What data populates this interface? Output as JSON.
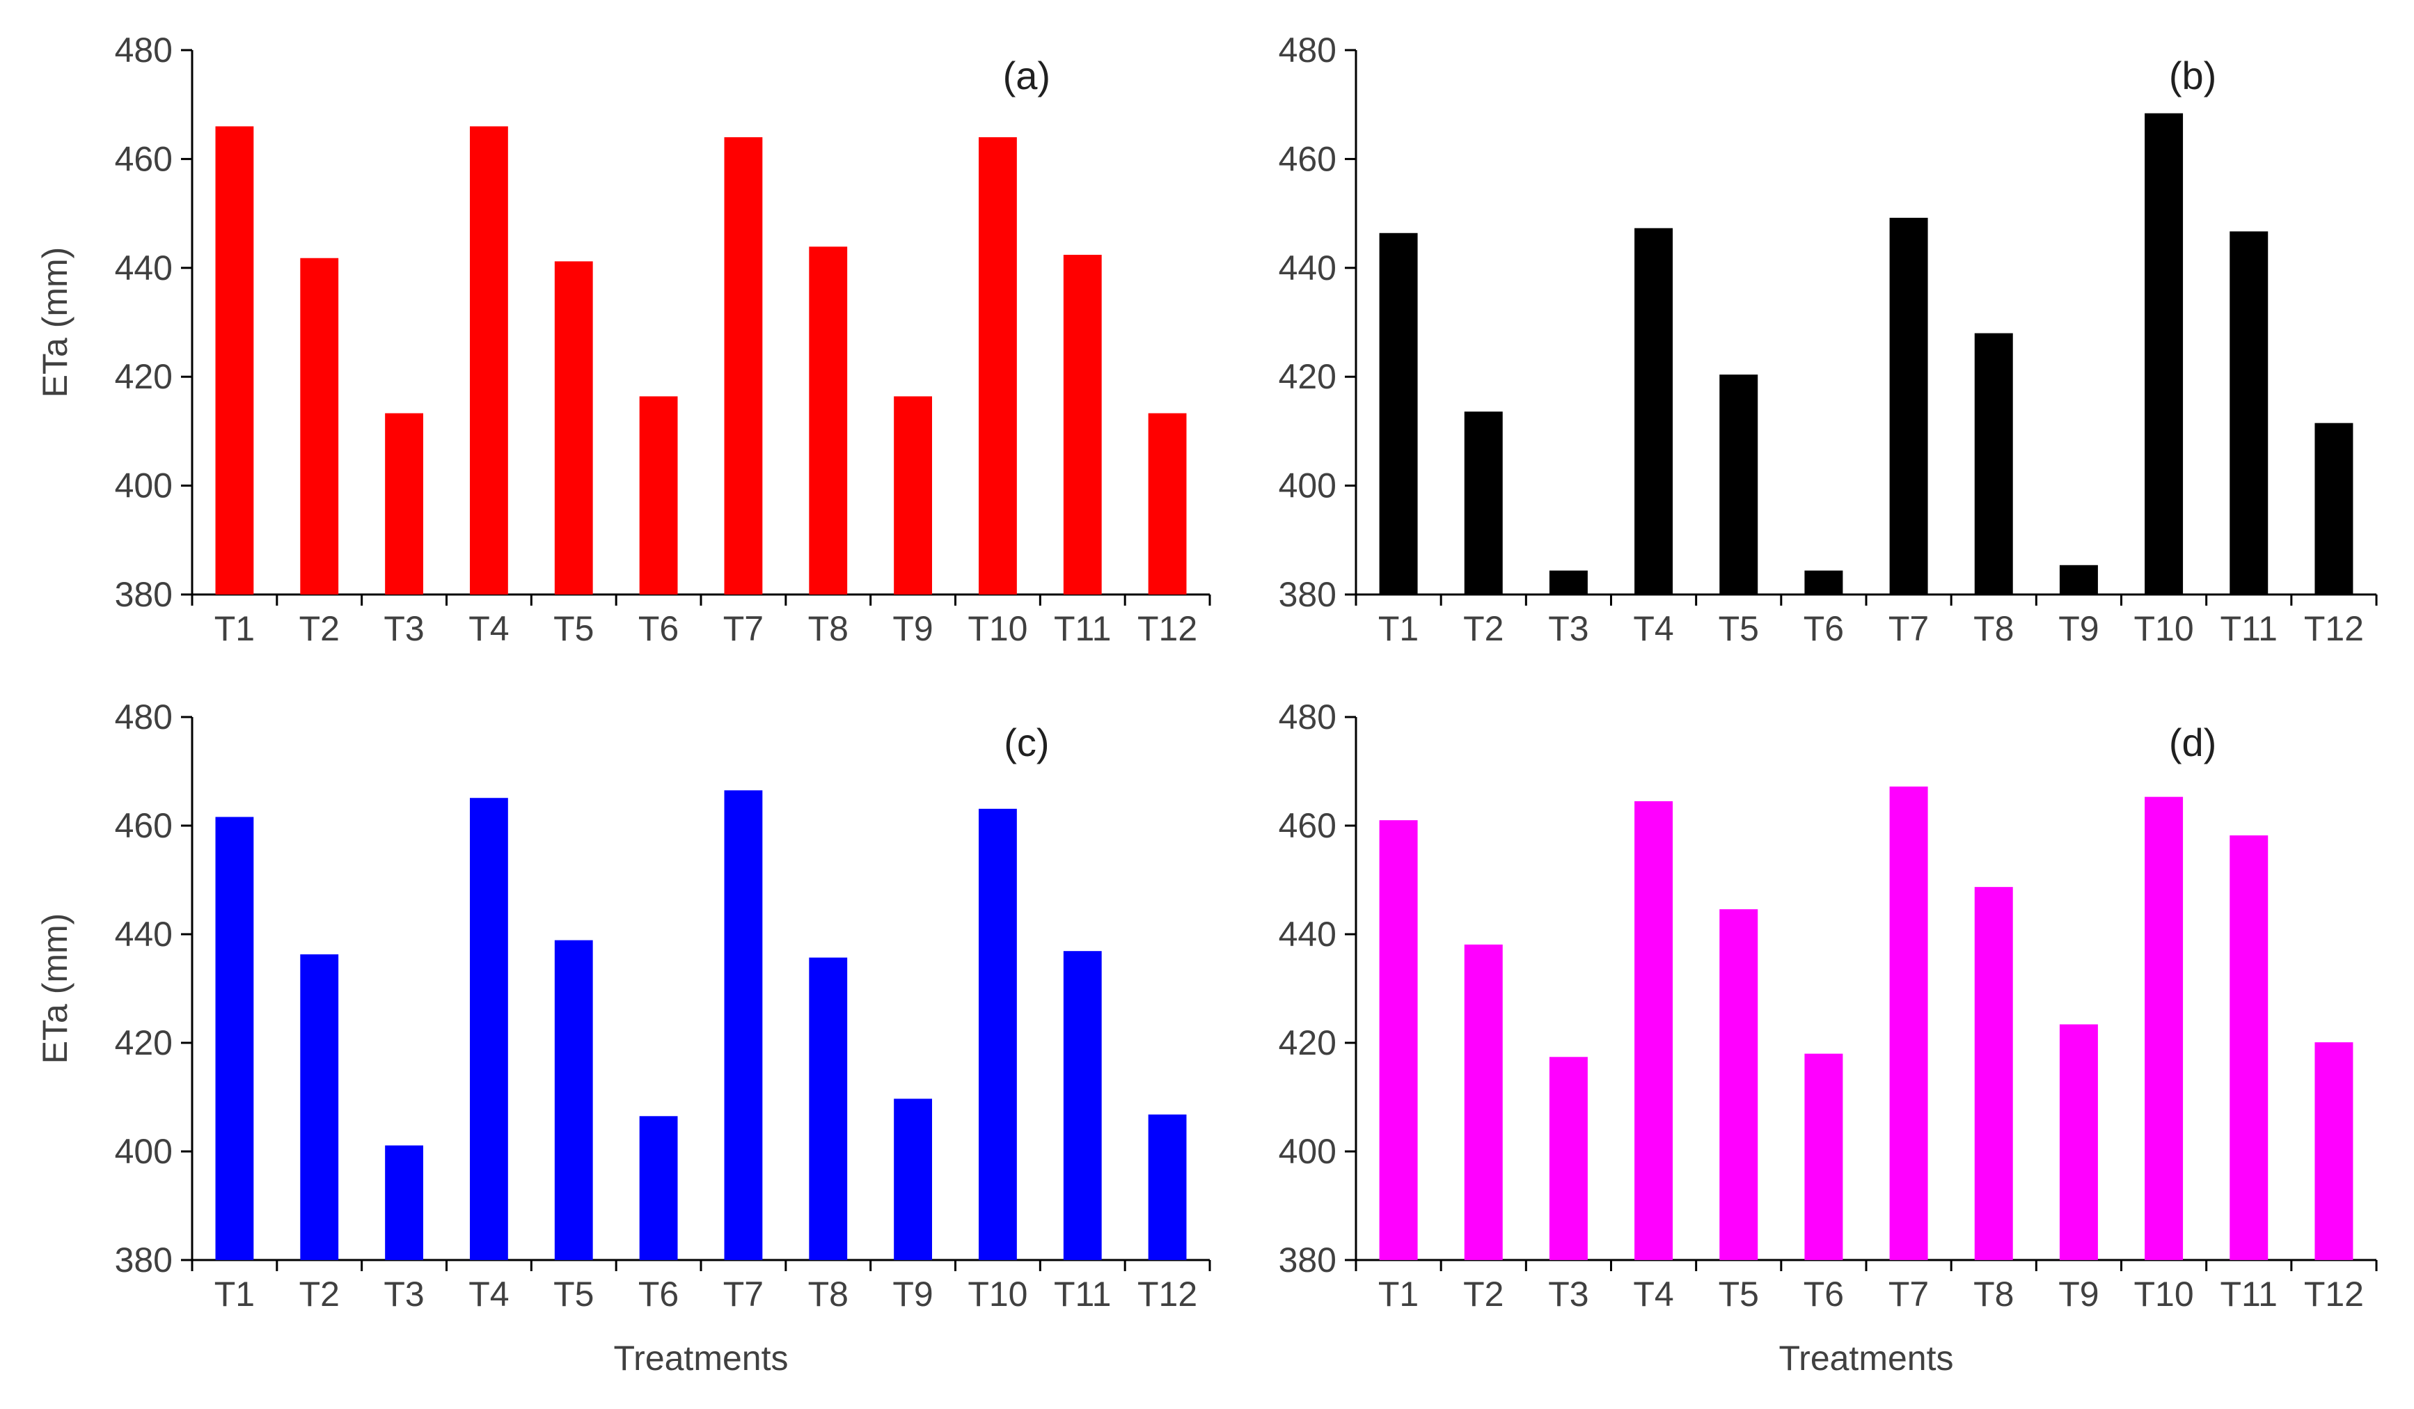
{
  "chart_data": [
    {
      "type": "bar",
      "panel_label": "(a)",
      "color": "#FF0000",
      "categories": [
        "T1",
        "T2",
        "T3",
        "T4",
        "T5",
        "T6",
        "T7",
        "T8",
        "T9",
        "T10",
        "T11",
        "T12"
      ],
      "values": [
        466,
        441.8,
        413.3,
        466,
        441.2,
        416.4,
        464,
        443.9,
        416.4,
        464,
        442.4,
        413.3
      ],
      "xlabel": "",
      "ylabel": "ETa (mm)",
      "ylim": [
        380,
        480
      ],
      "yticks": [
        380,
        400,
        420,
        440,
        460,
        480
      ]
    },
    {
      "type": "bar",
      "panel_label": "(b)",
      "color": "#000000",
      "categories": [
        "T1",
        "T2",
        "T3",
        "T4",
        "T5",
        "T6",
        "T7",
        "T8",
        "T9",
        "T10",
        "T11",
        "T12"
      ],
      "values": [
        446.4,
        413.6,
        384.4,
        447.3,
        420.4,
        384.4,
        449.2,
        428,
        385.4,
        468.4,
        446.7,
        411.5
      ],
      "xlabel": "",
      "ylabel": "",
      "ylim": [
        380,
        480
      ],
      "yticks": [
        380,
        400,
        420,
        440,
        460,
        480
      ]
    },
    {
      "type": "bar",
      "panel_label": "(c)",
      "color": "#0000FF",
      "categories": [
        "T1",
        "T2",
        "T3",
        "T4",
        "T5",
        "T6",
        "T7",
        "T8",
        "T9",
        "T10",
        "T11",
        "T12"
      ],
      "values": [
        461.6,
        436.3,
        401.1,
        465.1,
        438.9,
        406.5,
        466.5,
        435.7,
        409.7,
        463.1,
        436.9,
        406.8
      ],
      "xlabel": "Treatments",
      "ylabel": "ETa (mm)",
      "ylim": [
        380,
        480
      ],
      "yticks": [
        380,
        400,
        420,
        440,
        460,
        480
      ]
    },
    {
      "type": "bar",
      "panel_label": "(d)",
      "color": "#FF00FF",
      "categories": [
        "T1",
        "T2",
        "T3",
        "T4",
        "T5",
        "T6",
        "T7",
        "T8",
        "T9",
        "T10",
        "T11",
        "T12"
      ],
      "values": [
        461,
        438.1,
        417.4,
        464.5,
        444.6,
        418,
        467.2,
        448.7,
        423.4,
        465.3,
        458.2,
        420.1
      ],
      "xlabel": "Treatments",
      "ylabel": "",
      "ylim": [
        380,
        480
      ],
      "yticks": [
        380,
        400,
        420,
        440,
        460,
        480
      ]
    }
  ]
}
